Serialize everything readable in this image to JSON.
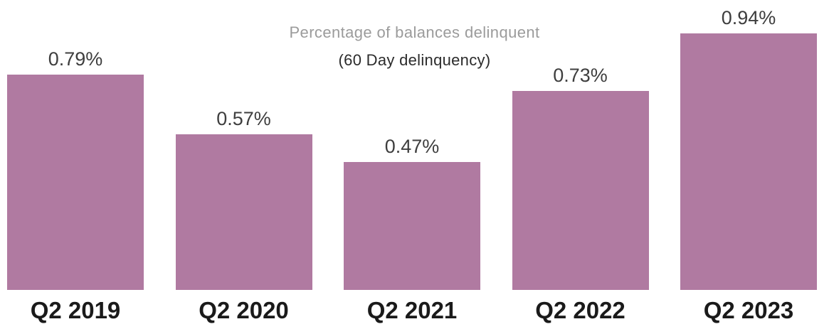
{
  "page": {
    "background": "#ffffff"
  },
  "chart_data": {
    "type": "bar",
    "title": "Percentage of balances delinquent",
    "subtitle": "(60 Day delinquency)",
    "categories": [
      "Q2 2019",
      "Q2 2020",
      "Q2 2021",
      "Q2 2022",
      "Q2 2023"
    ],
    "values": [
      0.79,
      0.57,
      0.47,
      0.73,
      0.94
    ],
    "value_labels": [
      "0.79%",
      "0.57%",
      "0.47%",
      "0.73%",
      "0.94%"
    ],
    "unit": "%",
    "ylim": [
      0,
      0.94
    ],
    "grid": false,
    "legend": false,
    "axes_visible": false,
    "colors": {
      "bar": "#b07aa1",
      "title": "#9b9b9b",
      "subtitle": "#2b2b2b",
      "value_label": "#3e3e3e",
      "category_label": "#1a1a1a"
    }
  }
}
